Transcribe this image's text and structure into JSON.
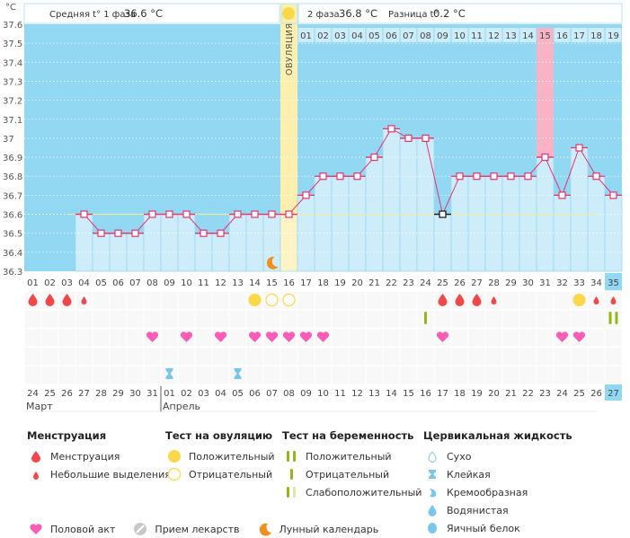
{
  "header": {
    "unit_label": "°C",
    "phase1_label": "Средняя t° 1 фаза",
    "phase1_value": "36.6 °C",
    "phase2_label": "2 фаза",
    "phase2_value": "36.8 °C",
    "diff_label": "Разница t°",
    "diff_value": "0.2 °C",
    "ovulation_label": "ОВУЛЯЦИЯ"
  },
  "chart_data": {
    "type": "line",
    "title": "",
    "xlabel": "",
    "ylabel": "°C",
    "ylim": [
      36.3,
      37.6
    ],
    "y_ticks": [
      "36.3",
      "36.4",
      "36.5",
      "36.6",
      "36.7",
      "36.8",
      "36.9",
      "37",
      "37.1",
      "37.2",
      "37.3",
      "37.4",
      "37.5",
      "37.6"
    ],
    "cycle_days": [
      "01",
      "02",
      "03",
      "04",
      "05",
      "06",
      "07",
      "08",
      "09",
      "10",
      "11",
      "12",
      "13",
      "14",
      "15",
      "16",
      "17",
      "18",
      "19",
      "20",
      "21",
      "22",
      "23",
      "24",
      "25",
      "26",
      "27",
      "28",
      "29",
      "30",
      "31",
      "32",
      "33",
      "34",
      "35"
    ],
    "phase2_days": [
      "01",
      "02",
      "03",
      "04",
      "05",
      "06",
      "07",
      "08",
      "09",
      "10",
      "11",
      "12",
      "13",
      "14",
      "15",
      "16",
      "17",
      "18",
      "19"
    ],
    "series": [
      {
        "name": "Базальная температура",
        "values": [
          null,
          null,
          null,
          36.6,
          36.5,
          36.5,
          36.5,
          36.6,
          36.6,
          36.6,
          36.5,
          36.5,
          36.6,
          36.6,
          36.6,
          36.6,
          36.7,
          36.8,
          36.8,
          36.8,
          36.9,
          37.05,
          37.0,
          37.0,
          36.6,
          36.8,
          36.8,
          36.8,
          36.8,
          36.8,
          36.9,
          36.7,
          36.95,
          36.8,
          36.7
        ]
      }
    ],
    "coverline": 36.6,
    "ovulation_day": 16,
    "excluded_day": 25,
    "highlight_pink_day": 31,
    "moon_day": 15,
    "current_day": 35,
    "calendar_dates": [
      "24",
      "25",
      "26",
      "27",
      "28",
      "29",
      "30",
      "31",
      "01",
      "02",
      "03",
      "04",
      "05",
      "06",
      "07",
      "08",
      "09",
      "10",
      "11",
      "12",
      "13",
      "14",
      "15",
      "16",
      "17",
      "18",
      "19",
      "20",
      "21",
      "22",
      "23",
      "24",
      "25",
      "26",
      "27"
    ],
    "calendar_red_indices": [
      2,
      3,
      9,
      10,
      16,
      17,
      22,
      23
    ],
    "months": [
      {
        "name": "Март",
        "start_index": 0
      },
      {
        "name": "Апрель",
        "start_index": 8
      }
    ],
    "markers": {
      "menstruation": [
        1,
        2,
        3,
        25,
        26,
        27
      ],
      "spotting": [
        4,
        28,
        34,
        35
      ],
      "ovulation_positive": [
        14,
        33
      ],
      "ovulation_negative": [
        15,
        16
      ],
      "pregnancy_negative": [
        24
      ],
      "pregnancy_positive": [
        35
      ],
      "intercourse": [
        8,
        10,
        12,
        14,
        15,
        16,
        17,
        18,
        25,
        32,
        33
      ],
      "cervical_sticky": [
        9,
        13
      ]
    },
    "colors": {
      "chart_bg": "#92d8f2",
      "bar_fill": "#cdedfb",
      "line": "#e8336a",
      "ovulation_band": "#fdefad",
      "pink_band": "#f9b3c7",
      "coverline": "#f5eba0",
      "menstruation": "#f04848",
      "ovulation_dot": "#fbd84a",
      "heart": "#fb5cb5",
      "pregnancy_green": "#90b818",
      "cervical": "#78c6ee"
    }
  },
  "legend": {
    "menstruation": {
      "title": "Менструация",
      "items": [
        "Менструация",
        "Небольшие выделения"
      ]
    },
    "ovulation_test": {
      "title": "Тест на овуляцию",
      "items": [
        "Положительный",
        "Отрицательный"
      ]
    },
    "pregnancy_test": {
      "title": "Тест на беременность",
      "items": [
        "Положительный",
        "Отрицательный",
        "Слабоположительный"
      ]
    },
    "cervical_fluid": {
      "title": "Цервикальная жидкость",
      "items": [
        "Сухо",
        "Клейкая",
        "Кремообразная",
        "Водянистая",
        "Яичный белок"
      ]
    },
    "other": [
      "Половой акт",
      "Прием лекарств",
      "Лунный календарь"
    ]
  }
}
